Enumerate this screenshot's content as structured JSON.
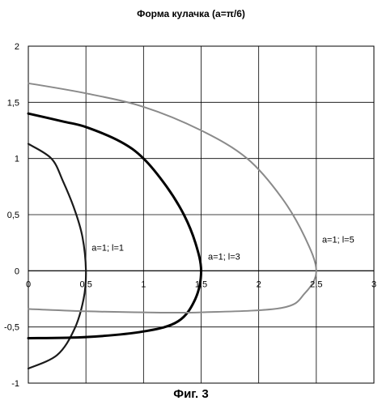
{
  "chart_data": {
    "type": "line",
    "title": "Форма кулачка  (a=π/6)",
    "xlabel": "",
    "ylabel": "",
    "xlim": [
      0,
      3
    ],
    "ylim": [
      -1,
      2
    ],
    "grid": true,
    "x_ticks": [
      "0",
      "0,5",
      "1",
      "1,5",
      "2",
      "2,5",
      "3"
    ],
    "y_ticks": [
      "2",
      "1,5",
      "1",
      "0,5",
      "0",
      "-0,5",
      "-1"
    ],
    "series": [
      {
        "name": "a=1; l=1",
        "color": "#1a1a1a",
        "width": 2.2,
        "points": [
          [
            0.0,
            1.13
          ],
          [
            0.2,
            1.0
          ],
          [
            0.3,
            0.8
          ],
          [
            0.4,
            0.55
          ],
          [
            0.47,
            0.3
          ],
          [
            0.5,
            0.0
          ],
          [
            0.48,
            -0.25
          ],
          [
            0.4,
            -0.52
          ],
          [
            0.25,
            -0.75
          ],
          [
            0.0,
            -0.87
          ]
        ]
      },
      {
        "name": "a=1; l=3",
        "color": "#000000",
        "width": 3.0,
        "points": [
          [
            0.0,
            1.4
          ],
          [
            0.3,
            1.33
          ],
          [
            0.5,
            1.28
          ],
          [
            0.8,
            1.15
          ],
          [
            1.0,
            1.0
          ],
          [
            1.2,
            0.75
          ],
          [
            1.35,
            0.5
          ],
          [
            1.45,
            0.25
          ],
          [
            1.5,
            0.0
          ],
          [
            1.45,
            -0.25
          ],
          [
            1.3,
            -0.45
          ],
          [
            1.0,
            -0.54
          ],
          [
            0.5,
            -0.59
          ],
          [
            0.0,
            -0.6
          ]
        ]
      },
      {
        "name": "a=1; l=5",
        "color": "#8a8a8a",
        "width": 2.0,
        "points": [
          [
            0.0,
            1.67
          ],
          [
            0.5,
            1.58
          ],
          [
            1.0,
            1.46
          ],
          [
            1.5,
            1.25
          ],
          [
            1.9,
            1.0
          ],
          [
            2.2,
            0.65
          ],
          [
            2.4,
            0.3
          ],
          [
            2.5,
            0.0
          ],
          [
            2.4,
            -0.2
          ],
          [
            2.2,
            -0.33
          ],
          [
            1.5,
            -0.37
          ],
          [
            1.0,
            -0.37
          ],
          [
            0.5,
            -0.36
          ],
          [
            0.0,
            -0.34
          ]
        ]
      }
    ],
    "annotations": [
      {
        "text": "a=1; l=1",
        "x": 0.55,
        "y": 0.18
      },
      {
        "text": "a=1; l=3",
        "x": 1.56,
        "y": 0.1
      },
      {
        "text": "a=1; l=5",
        "x": 2.55,
        "y": 0.25
      }
    ]
  },
  "caption": "Фиг. 3"
}
